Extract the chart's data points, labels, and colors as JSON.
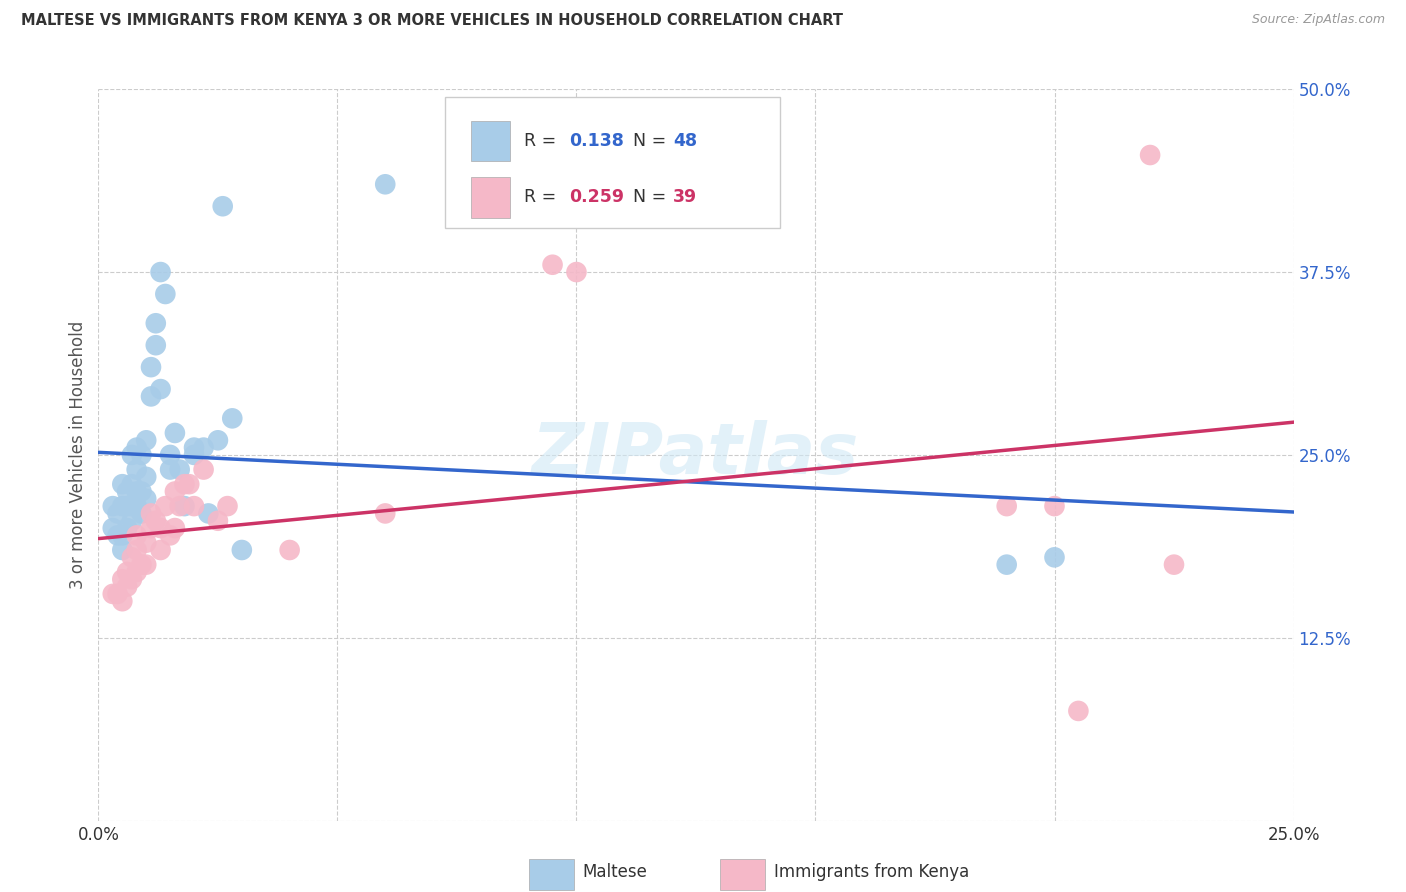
{
  "title": "MALTESE VS IMMIGRANTS FROM KENYA 3 OR MORE VEHICLES IN HOUSEHOLD CORRELATION CHART",
  "source": "Source: ZipAtlas.com",
  "ylabel": "3 or more Vehicles in Household",
  "xmin": 0.0,
  "xmax": 0.25,
  "ymin": 0.0,
  "ymax": 0.5,
  "xtick_positions": [
    0.0,
    0.05,
    0.1,
    0.15,
    0.2,
    0.25
  ],
  "xticklabels": [
    "0.0%",
    "",
    "",
    "",
    "",
    "25.0%"
  ],
  "ytick_positions": [
    0.0,
    0.125,
    0.25,
    0.375,
    0.5
  ],
  "yticklabels_right": [
    "",
    "12.5%",
    "25.0%",
    "37.5%",
    "50.0%"
  ],
  "blue_R": "0.138",
  "blue_N": "48",
  "pink_R": "0.259",
  "pink_N": "39",
  "blue_color": "#a8cce8",
  "pink_color": "#f5b8c8",
  "blue_line_color": "#3366cc",
  "pink_line_color": "#cc3366",
  "legend_label_blue": "Maltese",
  "legend_label_pink": "Immigrants from Kenya",
  "watermark": "ZIPatlas",
  "blue_scatter_x": [
    0.003,
    0.003,
    0.004,
    0.004,
    0.005,
    0.005,
    0.005,
    0.005,
    0.006,
    0.006,
    0.006,
    0.007,
    0.007,
    0.007,
    0.007,
    0.008,
    0.008,
    0.008,
    0.008,
    0.009,
    0.009,
    0.009,
    0.01,
    0.01,
    0.01,
    0.011,
    0.011,
    0.012,
    0.012,
    0.013,
    0.013,
    0.014,
    0.015,
    0.015,
    0.016,
    0.017,
    0.018,
    0.02,
    0.02,
    0.022,
    0.023,
    0.025,
    0.026,
    0.028,
    0.03,
    0.06,
    0.19,
    0.2
  ],
  "blue_scatter_y": [
    0.2,
    0.215,
    0.195,
    0.21,
    0.185,
    0.195,
    0.215,
    0.23,
    0.2,
    0.215,
    0.225,
    0.205,
    0.215,
    0.23,
    0.25,
    0.215,
    0.225,
    0.24,
    0.255,
    0.21,
    0.225,
    0.25,
    0.22,
    0.235,
    0.26,
    0.29,
    0.31,
    0.325,
    0.34,
    0.295,
    0.375,
    0.36,
    0.24,
    0.25,
    0.265,
    0.24,
    0.215,
    0.25,
    0.255,
    0.255,
    0.21,
    0.26,
    0.42,
    0.275,
    0.185,
    0.435,
    0.175,
    0.18
  ],
  "pink_scatter_x": [
    0.003,
    0.004,
    0.005,
    0.005,
    0.006,
    0.006,
    0.007,
    0.007,
    0.008,
    0.008,
    0.008,
    0.009,
    0.01,
    0.01,
    0.011,
    0.011,
    0.012,
    0.013,
    0.013,
    0.014,
    0.015,
    0.016,
    0.016,
    0.017,
    0.018,
    0.019,
    0.02,
    0.022,
    0.025,
    0.027,
    0.04,
    0.06,
    0.095,
    0.1,
    0.19,
    0.2,
    0.205,
    0.22,
    0.225
  ],
  "pink_scatter_y": [
    0.155,
    0.155,
    0.15,
    0.165,
    0.16,
    0.17,
    0.165,
    0.18,
    0.17,
    0.185,
    0.195,
    0.175,
    0.175,
    0.19,
    0.2,
    0.21,
    0.205,
    0.185,
    0.2,
    0.215,
    0.195,
    0.2,
    0.225,
    0.215,
    0.23,
    0.23,
    0.215,
    0.24,
    0.205,
    0.215,
    0.185,
    0.21,
    0.38,
    0.375,
    0.215,
    0.215,
    0.075,
    0.455,
    0.175
  ]
}
